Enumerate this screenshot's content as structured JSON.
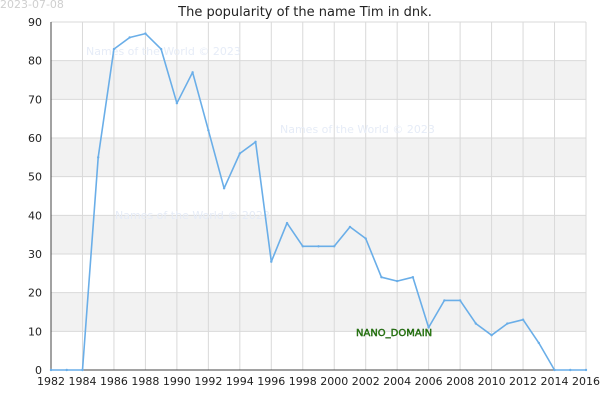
{
  "chart_data": {
    "type": "line",
    "title": "The popularity of the name Tim in dnk.",
    "date_stamp": "2023-07-08",
    "watermark": "Names of the World © 2023",
    "badge": "NANO_DOMAIN",
    "xlabel": "",
    "ylabel": "",
    "xlim": [
      1982,
      2016
    ],
    "ylim": [
      0,
      90
    ],
    "x_ticks": [
      1982,
      1984,
      1986,
      1988,
      1990,
      1992,
      1994,
      1996,
      1998,
      2000,
      2002,
      2004,
      2006,
      2008,
      2010,
      2012,
      2014,
      2016
    ],
    "y_ticks": [
      0,
      10,
      20,
      30,
      40,
      50,
      60,
      70,
      80,
      90
    ],
    "grid": true,
    "legend": "none",
    "colors": {
      "line": "#6aaee8",
      "band": "#f2f2f2",
      "grid": "#d9d9d9",
      "axis": "#444444"
    },
    "x": [
      1982,
      1983,
      1984,
      1985,
      1986,
      1987,
      1988,
      1989,
      1990,
      1991,
      1992,
      1993,
      1994,
      1995,
      1996,
      1997,
      1998,
      1999,
      2000,
      2001,
      2002,
      2003,
      2004,
      2005,
      2006,
      2007,
      2008,
      2009,
      2010,
      2011,
      2012,
      2013,
      2014,
      2015,
      2016
    ],
    "values": [
      0,
      0,
      0,
      55,
      83,
      86,
      87,
      83,
      69,
      77,
      62,
      47,
      56,
      59,
      28,
      38,
      32,
      32,
      32,
      37,
      34,
      24,
      23,
      24,
      11,
      18,
      18,
      12,
      9,
      12,
      13,
      7,
      0,
      0,
      0
    ]
  }
}
